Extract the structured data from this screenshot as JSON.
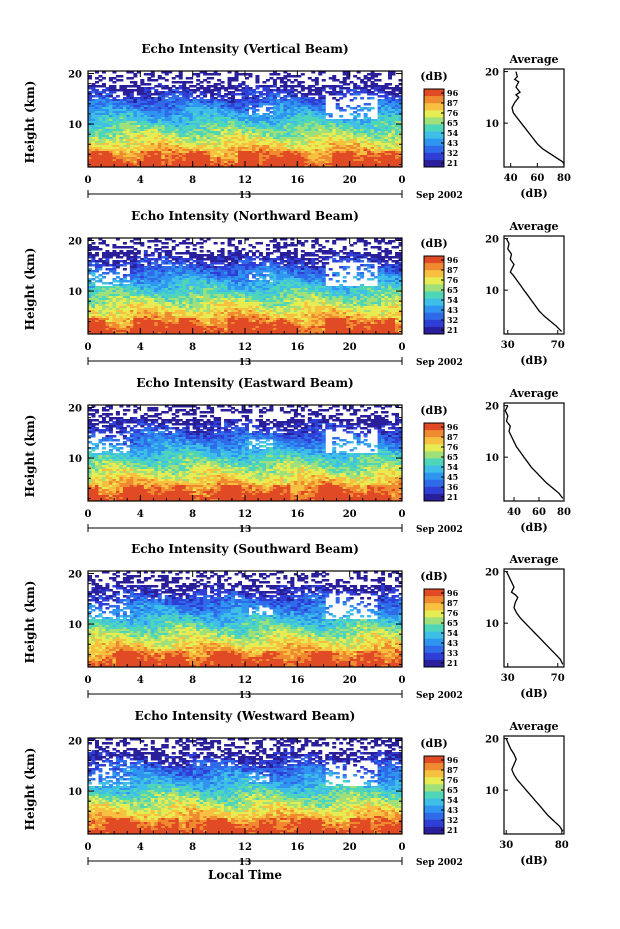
{
  "figure": {
    "xlabel": "Local Time"
  },
  "colorbar": {
    "unit_label": "(dB)",
    "colors": [
      "#2a1f9a",
      "#2f3fd6",
      "#2f6be8",
      "#2f95f0",
      "#3fbfe8",
      "#4fd6b8",
      "#9fe07a",
      "#e6ec52",
      "#f8c040",
      "#f08a30",
      "#e04a24"
    ]
  },
  "chart_data": [
    {
      "type": "heatmap",
      "title": "Echo Intensity (Vertical Beam)",
      "ylabel": "Height (km)",
      "x_ticks": [
        "0",
        "4",
        "8",
        "12",
        "16",
        "20",
        "0"
      ],
      "xlim": [
        0,
        24
      ],
      "ylim": [
        1.5,
        20.5
      ],
      "y_ticks": [
        "20",
        "10"
      ],
      "date_day": "13",
      "date_month_year": "Sep 2002",
      "colorbar_ticks": [
        "96",
        "87",
        "76",
        "65",
        "54",
        "43",
        "32",
        "21"
      ],
      "profile": {
        "title": "Average",
        "xlabel": "(dB)",
        "x_ticks": [
          "40",
          "60",
          "80"
        ],
        "xlim": [
          35,
          80
        ],
        "y_ticks": [
          "20",
          "10"
        ],
        "points": [
          [
            44,
            20
          ],
          [
            45,
            19
          ],
          [
            43,
            18.5
          ],
          [
            46,
            18
          ],
          [
            44,
            17
          ],
          [
            47,
            16
          ],
          [
            44,
            15.5
          ],
          [
            46,
            15
          ],
          [
            43,
            14
          ],
          [
            41,
            13
          ],
          [
            42,
            12
          ],
          [
            45,
            11
          ],
          [
            48,
            10
          ],
          [
            51,
            9
          ],
          [
            54,
            8
          ],
          [
            57,
            7
          ],
          [
            60,
            6
          ],
          [
            64,
            5
          ],
          [
            70,
            4
          ],
          [
            76,
            3
          ],
          [
            79,
            2.5
          ],
          [
            80,
            2
          ]
        ]
      }
    },
    {
      "type": "heatmap",
      "title": "Echo Intensity (Northward Beam)",
      "ylabel": "Height (km)",
      "x_ticks": [
        "0",
        "4",
        "8",
        "12",
        "16",
        "20",
        "0"
      ],
      "xlim": [
        0,
        24
      ],
      "ylim": [
        1.5,
        20.5
      ],
      "y_ticks": [
        "20",
        "10"
      ],
      "date_day": "13",
      "date_month_year": "Sep 2002",
      "colorbar_ticks": [
        "96",
        "87",
        "76",
        "65",
        "54",
        "43",
        "32",
        "21"
      ],
      "profile": {
        "title": "Average",
        "xlabel": "(dB)",
        "x_ticks": [
          "30",
          "70"
        ],
        "xlim": [
          27,
          75
        ],
        "y_ticks": [
          "20",
          "10"
        ],
        "points": [
          [
            29,
            20
          ],
          [
            31,
            19
          ],
          [
            30,
            18
          ],
          [
            33,
            17
          ],
          [
            32,
            16
          ],
          [
            35,
            15
          ],
          [
            33,
            14
          ],
          [
            32,
            13.5
          ],
          [
            34,
            13
          ],
          [
            37,
            12
          ],
          [
            40,
            11
          ],
          [
            43,
            10
          ],
          [
            46,
            9
          ],
          [
            49,
            8
          ],
          [
            52,
            7
          ],
          [
            55,
            6
          ],
          [
            59,
            5
          ],
          [
            64,
            4
          ],
          [
            69,
            3
          ],
          [
            73,
            2
          ]
        ]
      }
    },
    {
      "type": "heatmap",
      "title": "Echo Intensity (Eastward Beam)",
      "ylabel": "Height (km)",
      "x_ticks": [
        "0",
        "4",
        "8",
        "12",
        "16",
        "20",
        "0"
      ],
      "xlim": [
        0,
        24
      ],
      "ylim": [
        1.5,
        20.5
      ],
      "y_ticks": [
        "20",
        "10"
      ],
      "date_day": "13",
      "date_month_year": "Sep 2002",
      "colorbar_ticks": [
        "96",
        "87",
        "76",
        "65",
        "54",
        "45",
        "36",
        "21"
      ],
      "profile": {
        "title": "Average",
        "xlabel": "(dB)",
        "x_ticks": [
          "40",
          "60",
          "80"
        ],
        "xlim": [
          32,
          80
        ],
        "y_ticks": [
          "20",
          "10"
        ],
        "points": [
          [
            35,
            20
          ],
          [
            33,
            19
          ],
          [
            35,
            18
          ],
          [
            34,
            17
          ],
          [
            37,
            16
          ],
          [
            36,
            15
          ],
          [
            38,
            14
          ],
          [
            40,
            13
          ],
          [
            42,
            12
          ],
          [
            45,
            11
          ],
          [
            48,
            10
          ],
          [
            51,
            9
          ],
          [
            54,
            8
          ],
          [
            58,
            7
          ],
          [
            62,
            6
          ],
          [
            66,
            5
          ],
          [
            71,
            4
          ],
          [
            76,
            3
          ],
          [
            79,
            2
          ]
        ]
      }
    },
    {
      "type": "heatmap",
      "title": "Echo Intensity (Southward Beam)",
      "ylabel": "Height (km)",
      "x_ticks": [
        "0",
        "4",
        "8",
        "12",
        "16",
        "20",
        "0"
      ],
      "xlim": [
        0,
        24
      ],
      "ylim": [
        1.5,
        20.5
      ],
      "y_ticks": [
        "20",
        "10"
      ],
      "date_day": "13",
      "date_month_year": "Sep 2002",
      "colorbar_ticks": [
        "96",
        "87",
        "76",
        "65",
        "54",
        "43",
        "33",
        "21"
      ],
      "profile": {
        "title": "Average",
        "xlabel": "(dB)",
        "x_ticks": [
          "30",
          "70"
        ],
        "xlim": [
          27,
          75
        ],
        "y_ticks": [
          "20",
          "10"
        ],
        "points": [
          [
            29,
            20
          ],
          [
            31,
            19
          ],
          [
            33,
            18
          ],
          [
            35,
            17
          ],
          [
            33,
            16
          ],
          [
            36,
            15.5
          ],
          [
            38,
            15
          ],
          [
            36,
            14
          ],
          [
            35,
            13
          ],
          [
            37,
            12
          ],
          [
            40,
            11
          ],
          [
            44,
            10
          ],
          [
            48,
            9
          ],
          [
            52,
            8
          ],
          [
            56,
            7
          ],
          [
            60,
            6
          ],
          [
            64,
            5
          ],
          [
            68,
            4
          ],
          [
            72,
            3
          ],
          [
            74,
            2
          ]
        ]
      }
    },
    {
      "type": "heatmap",
      "title": "Echo Intensity (Westward Beam)",
      "ylabel": "Height (km)",
      "x_ticks": [
        "0",
        "4",
        "8",
        "12",
        "16",
        "20",
        "0"
      ],
      "xlim": [
        0,
        24
      ],
      "ylim": [
        1.5,
        20.5
      ],
      "y_ticks": [
        "20",
        "10"
      ],
      "date_day": "13",
      "date_month_year": "Sep 2002",
      "colorbar_ticks": [
        "96",
        "87",
        "76",
        "65",
        "54",
        "43",
        "32",
        "21"
      ],
      "profile": {
        "title": "Average",
        "xlabel": "(dB)",
        "x_ticks": [
          "30",
          "80"
        ],
        "xlim": [
          28,
          82
        ],
        "y_ticks": [
          "20",
          "10"
        ],
        "points": [
          [
            30,
            20
          ],
          [
            32,
            19
          ],
          [
            34,
            18
          ],
          [
            37,
            17
          ],
          [
            39,
            16
          ],
          [
            37,
            15
          ],
          [
            35,
            14
          ],
          [
            37,
            13
          ],
          [
            40,
            12
          ],
          [
            44,
            11
          ],
          [
            48,
            10
          ],
          [
            52,
            9
          ],
          [
            56,
            8
          ],
          [
            60,
            7
          ],
          [
            64,
            6
          ],
          [
            68,
            5
          ],
          [
            73,
            4
          ],
          [
            78,
            3
          ],
          [
            81,
            2
          ]
        ]
      }
    }
  ]
}
